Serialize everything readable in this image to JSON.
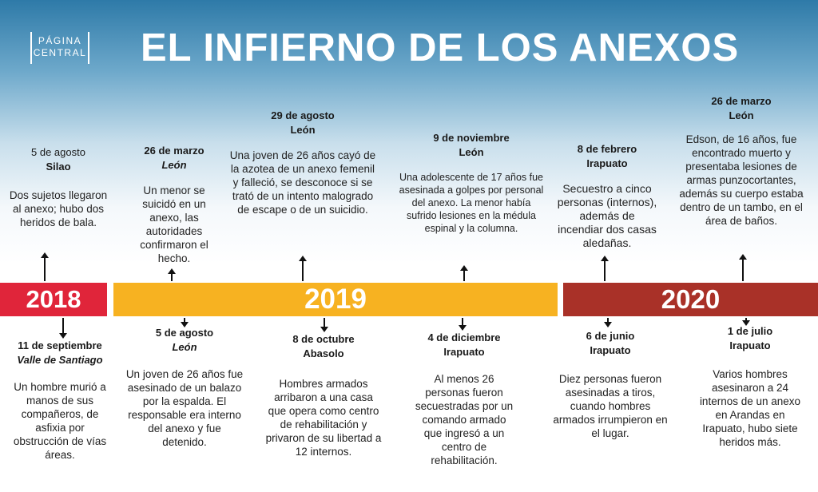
{
  "header": {
    "logo_line1": "PÁGINA",
    "logo_line2": "CENTRAL",
    "title": "EL INFIERNO DE LOS ANEXOS"
  },
  "years": [
    "2018",
    "2019",
    "2020"
  ],
  "events_top": [
    {
      "date": "5 de agosto",
      "place": "Silao",
      "text": "Dos sujetos llegaron al anexo; hubo dos heridos de bala."
    },
    {
      "date": "26 de marzo",
      "place": "León",
      "text": "Un menor se suicidó en un anexo, las autoridades confirmaron el hecho."
    },
    {
      "date": "29 de agosto",
      "place": "León",
      "text": "Una joven de 26 años cayó de la azotea de un anexo femenil y falleció, se desconoce si se trató de un intento malogrado de escape o de un suicidio."
    },
    {
      "date": "9 de noviembre",
      "place": "León",
      "text": "Una adolescente de 17 años fue asesinada a golpes por personal del anexo. La menor había sufrido lesiones en la médula espinal y la columna."
    },
    {
      "date": "8 de febrero",
      "place": "Irapuato",
      "text": "Secuestro a cinco personas (internos), además de incendiar dos casas aledañas."
    },
    {
      "date": "26 de marzo",
      "place": "León",
      "text": "Edson, de 16 años, fue encontrado muerto y presentaba lesiones de armas punzocortantes, además su cuerpo estaba dentro de un tambo, en el área de baños."
    }
  ],
  "events_bottom": [
    {
      "date": "11 de septiembre",
      "place": "Valle de Santiago",
      "text": "Un hombre murió a manos de sus compañeros, de asfixia por obstrucción de vías áreas."
    },
    {
      "date": "5 de agosto",
      "place": "León",
      "text": "Un joven de 26 años fue asesinado de un balazo por la espalda. El responsable era interno del anexo y fue detenido."
    },
    {
      "date": "8 de octubre",
      "place": "Abasolo",
      "text": "Hombres armados arribaron a una casa que opera como centro de rehabilitación y privaron de su libertad a 12 internos."
    },
    {
      "date": "4 de diciembre",
      "place": "Irapuato",
      "text": "Al menos 26 personas fueron secuestradas por un comando armado que ingresó a un centro de rehabilitación."
    },
    {
      "date": "6 de junio",
      "place": "Irapuato",
      "text": "Diez personas fueron asesinadas a tiros, cuando hombres armados irrumpieron en el lugar."
    },
    {
      "date": "1 de julio",
      "place": "Irapuato",
      "text": "Varios hombres asesinaron a 24 internos de un anexo en Arandas en Irapuato, hubo siete heridos más."
    }
  ]
}
